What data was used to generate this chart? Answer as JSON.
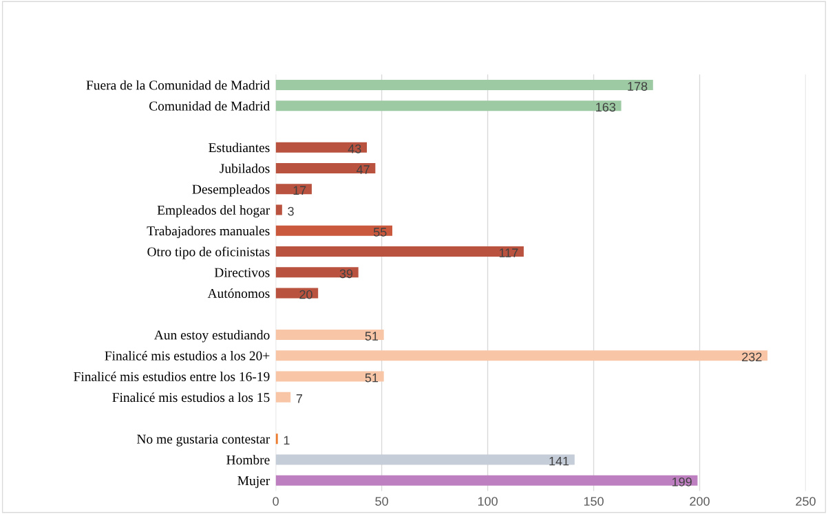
{
  "chart_data": {
    "type": "bar",
    "orientation": "horizontal",
    "categories": [
      "Fuera de la Comunidad de Madrid",
      "Comunidad de Madrid",
      null,
      "Estudiantes",
      "Jubilados",
      "Desempleados",
      "Empleados del hogar",
      "Trabajadores manuales",
      "Otro tipo de oficinistas",
      "Directivos",
      "Autónomos",
      null,
      "Aun estoy estudiando",
      "Finalicé mis estudios a los 20+",
      "Finalicé mis estudios entre los 16-19",
      "Finalicé mis estudios a los 15",
      null,
      "No me gustaria contestar",
      "Hombre",
      "Mujer"
    ],
    "values": [
      178,
      163,
      null,
      43,
      47,
      17,
      3,
      55,
      117,
      39,
      20,
      null,
      51,
      232,
      51,
      7,
      null,
      1,
      141,
      199
    ],
    "colors": [
      "#9dc9a3",
      "#9dc9a3",
      null,
      "#b9533f",
      "#b9533f",
      "#b9533f",
      "#b9533f",
      "#c9583c",
      "#b9533f",
      "#b9533f",
      "#b9533f",
      null,
      "#f8c6a6",
      "#f8c6a6",
      "#f8c6a6",
      "#f8c6a6",
      null,
      "#ed7d31",
      "#c5cdd8",
      "#bd7fbf"
    ],
    "xlim": [
      0,
      250
    ],
    "xticks": [
      0,
      50,
      100,
      150,
      200,
      250
    ],
    "grid": "x",
    "data_labels": true
  }
}
